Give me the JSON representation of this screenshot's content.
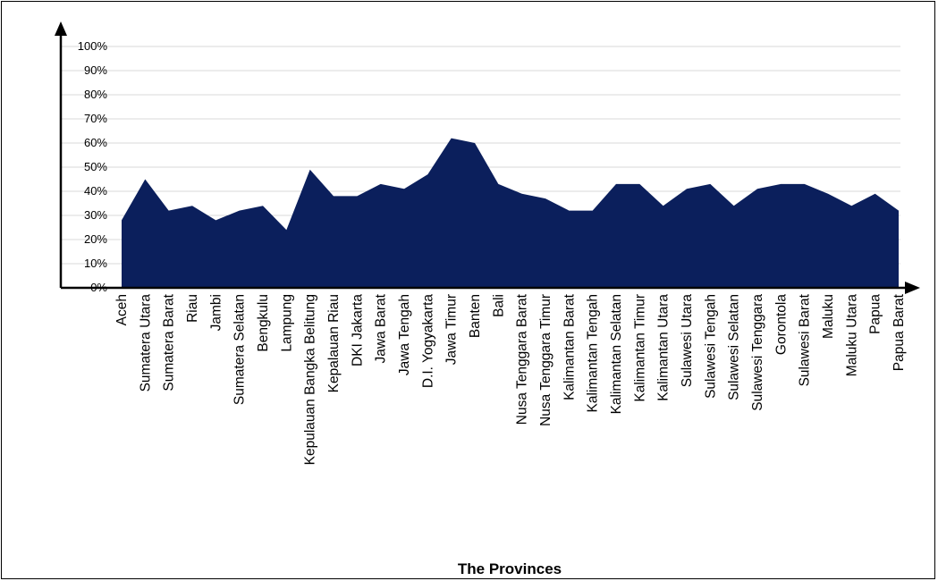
{
  "chart_data": {
    "type": "area",
    "title": "",
    "xlabel": "The Provinces",
    "ylabel": "",
    "ylim": [
      0,
      100
    ],
    "yticks": [
      "0%",
      "10%",
      "20%",
      "30%",
      "40%",
      "50%",
      "60%",
      "70%",
      "80%",
      "90%",
      "100%"
    ],
    "grid": true,
    "legend": "none",
    "color": "#0b1f5c",
    "categories": [
      "Aceh",
      "Sumatera Utara",
      "Sumatera Barat",
      "Riau",
      "Jambi",
      "Sumatera Selatan",
      "Bengkulu",
      "Lampung",
      "Kepulauan Bangka Belitung",
      "Kepalauan Riau",
      "DKI Jakarta",
      "Jawa Barat",
      "Jawa Tengah",
      "D.I. Yogyakarta",
      "Jawa Timur",
      "Banten",
      "Bali",
      "Nusa Tenggara Barat",
      "Nusa Tenggara Timur",
      "Kalimantan Barat",
      "Kalimantan Tengah",
      "Kalimantan Selatan",
      "Kalimantan Timur",
      "Kalimantan Utara",
      "Sulawesi Utara",
      "Sulawesi Tengah",
      "Sulawesi Selatan",
      "Sulawesi Tenggara",
      "Gorontola",
      "Sulawesi Barat",
      "Maluku",
      "Maluku Utara",
      "Papua",
      "Papua Barat"
    ],
    "values": [
      28,
      45,
      32,
      34,
      28,
      32,
      34,
      24,
      49,
      38,
      38,
      43,
      41,
      47,
      62,
      60,
      43,
      39,
      37,
      32,
      32,
      43,
      43,
      34,
      41,
      43,
      34,
      41,
      43,
      43,
      39,
      34,
      39,
      32
    ]
  }
}
